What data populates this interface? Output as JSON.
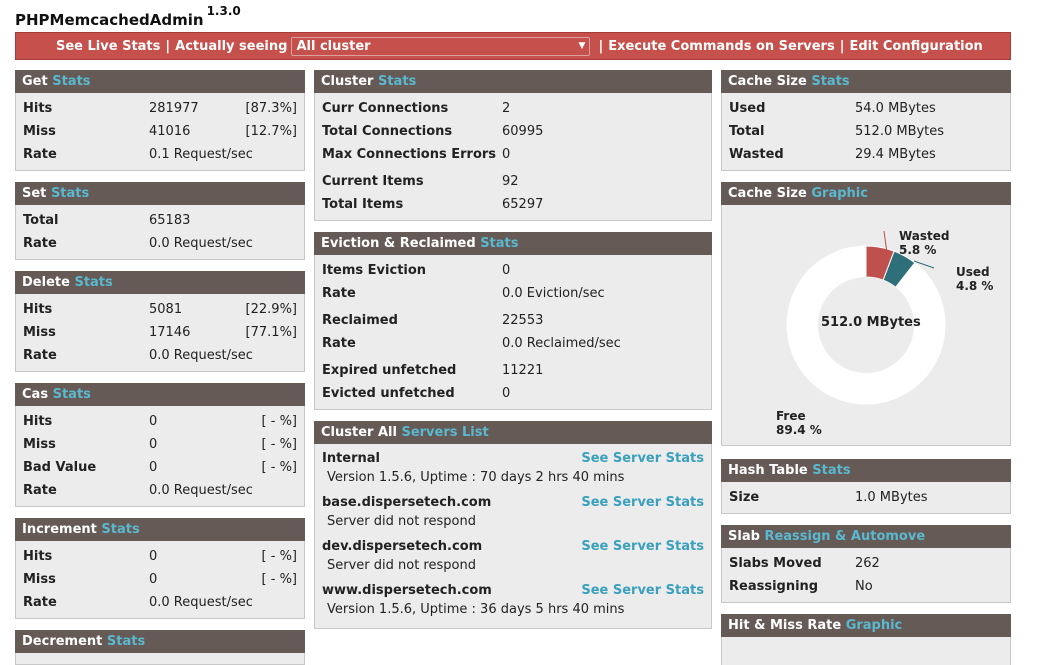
{
  "app": {
    "title": "PHPMemcachedAdmin",
    "version": "1.3.0"
  },
  "menu": {
    "live_stats": "See Live Stats",
    "sep": "|",
    "actually_seeing": "Actually seeing",
    "cluster_selected": "All cluster",
    "execute_commands": "Execute Commands on Servers",
    "edit_config": "Edit Configuration"
  },
  "get": {
    "title": "Get",
    "title_accent": "Stats",
    "hits_label": "Hits",
    "hits": "281977",
    "hits_pct": "[87.3%]",
    "miss_label": "Miss",
    "miss": "41016",
    "miss_pct": "[12.7%]",
    "rate_label": "Rate",
    "rate": "0.1 Request/sec"
  },
  "set": {
    "title": "Set",
    "title_accent": "Stats",
    "total_label": "Total",
    "total": "65183",
    "rate_label": "Rate",
    "rate": "0.0 Request/sec"
  },
  "delete": {
    "title": "Delete",
    "title_accent": "Stats",
    "hits_label": "Hits",
    "hits": "5081",
    "hits_pct": "[22.9%]",
    "miss_label": "Miss",
    "miss": "17146",
    "miss_pct": "[77.1%]",
    "rate_label": "Rate",
    "rate": "0.0 Request/sec"
  },
  "cas": {
    "title": "Cas",
    "title_accent": "Stats",
    "hits_label": "Hits",
    "hits": "0",
    "hits_pct": "[ - %]",
    "miss_label": "Miss",
    "miss": "0",
    "miss_pct": "[ - %]",
    "bad_label": "Bad Value",
    "bad": "0",
    "bad_pct": "[ - %]",
    "rate_label": "Rate",
    "rate": "0.0 Request/sec"
  },
  "increment": {
    "title": "Increment",
    "title_accent": "Stats",
    "hits_label": "Hits",
    "hits": "0",
    "hits_pct": "[ - %]",
    "miss_label": "Miss",
    "miss": "0",
    "miss_pct": "[ - %]",
    "rate_label": "Rate",
    "rate": "0.0 Request/sec"
  },
  "decrement": {
    "title": "Decrement",
    "title_accent": "Stats"
  },
  "cluster": {
    "title": "Cluster",
    "title_accent": "Stats",
    "curr_conn_label": "Curr Connections",
    "curr_conn": "2",
    "total_conn_label": "Total Connections",
    "total_conn": "60995",
    "max_conn_err_label": "Max Connections Errors",
    "max_conn_err": "0",
    "curr_items_label": "Current Items",
    "curr_items": "92",
    "total_items_label": "Total Items",
    "total_items": "65297"
  },
  "eviction": {
    "title": "Eviction & Reclaimed",
    "title_accent": "Stats",
    "items_eviction_label": "Items Eviction",
    "items_eviction": "0",
    "rate1_label": "Rate",
    "rate1": "0.0 Eviction/sec",
    "reclaimed_label": "Reclaimed",
    "reclaimed": "22553",
    "rate2_label": "Rate",
    "rate2": "0.0 Reclaimed/sec",
    "expired_label": "Expired unfetched",
    "expired": "11221",
    "evicted_label": "Evicted unfetched",
    "evicted": "0"
  },
  "servers": {
    "title": "Cluster All",
    "title_accent": "Servers List",
    "see_label": "See Server Stats",
    "list": [
      {
        "name": "Internal",
        "info": "Version 1.5.6, Uptime : 70 days 2 hrs 40 mins"
      },
      {
        "name": "base.dispersetech.com",
        "info": "Server did not respond"
      },
      {
        "name": "dev.dispersetech.com",
        "info": "Server did not respond"
      },
      {
        "name": "www.dispersetech.com",
        "info": "Version 1.5.6, Uptime : 36 days 5 hrs 40 mins"
      }
    ]
  },
  "cache_size": {
    "title": "Cache Size",
    "title_accent": "Stats",
    "used_label": "Used",
    "used": "54.0 MBytes",
    "total_label": "Total",
    "total": "512.0 MBytes",
    "wasted_label": "Wasted",
    "wasted": "29.4 MBytes"
  },
  "cache_graphic": {
    "title": "Cache Size",
    "title_accent": "Graphic",
    "center_label": "512.0 MBytes",
    "wasted_label": "Wasted",
    "wasted_pct": "5.8 %",
    "used_label": "Used",
    "used_pct": "4.8 %",
    "free_label": "Free",
    "free_pct": "89.4 %",
    "colors": {
      "wasted": "#c0504d",
      "used": "#2e6f7a",
      "free": "#ffffff"
    }
  },
  "chart_data": {
    "type": "pie",
    "categories": [
      "Wasted",
      "Used",
      "Free"
    ],
    "values": [
      5.8,
      4.8,
      89.4
    ]
  },
  "hash_table": {
    "title": "Hash Table",
    "title_accent": "Stats",
    "size_label": "Size",
    "size": "1.0 MBytes"
  },
  "slab": {
    "title": "Slab",
    "title_accent": "Reassign & Automove",
    "moved_label": "Slabs Moved",
    "moved": "262",
    "reassigning_label": "Reassigning",
    "reassigning": "No"
  },
  "hitmiss": {
    "title": "Hit & Miss Rate",
    "title_accent": "Graphic"
  }
}
